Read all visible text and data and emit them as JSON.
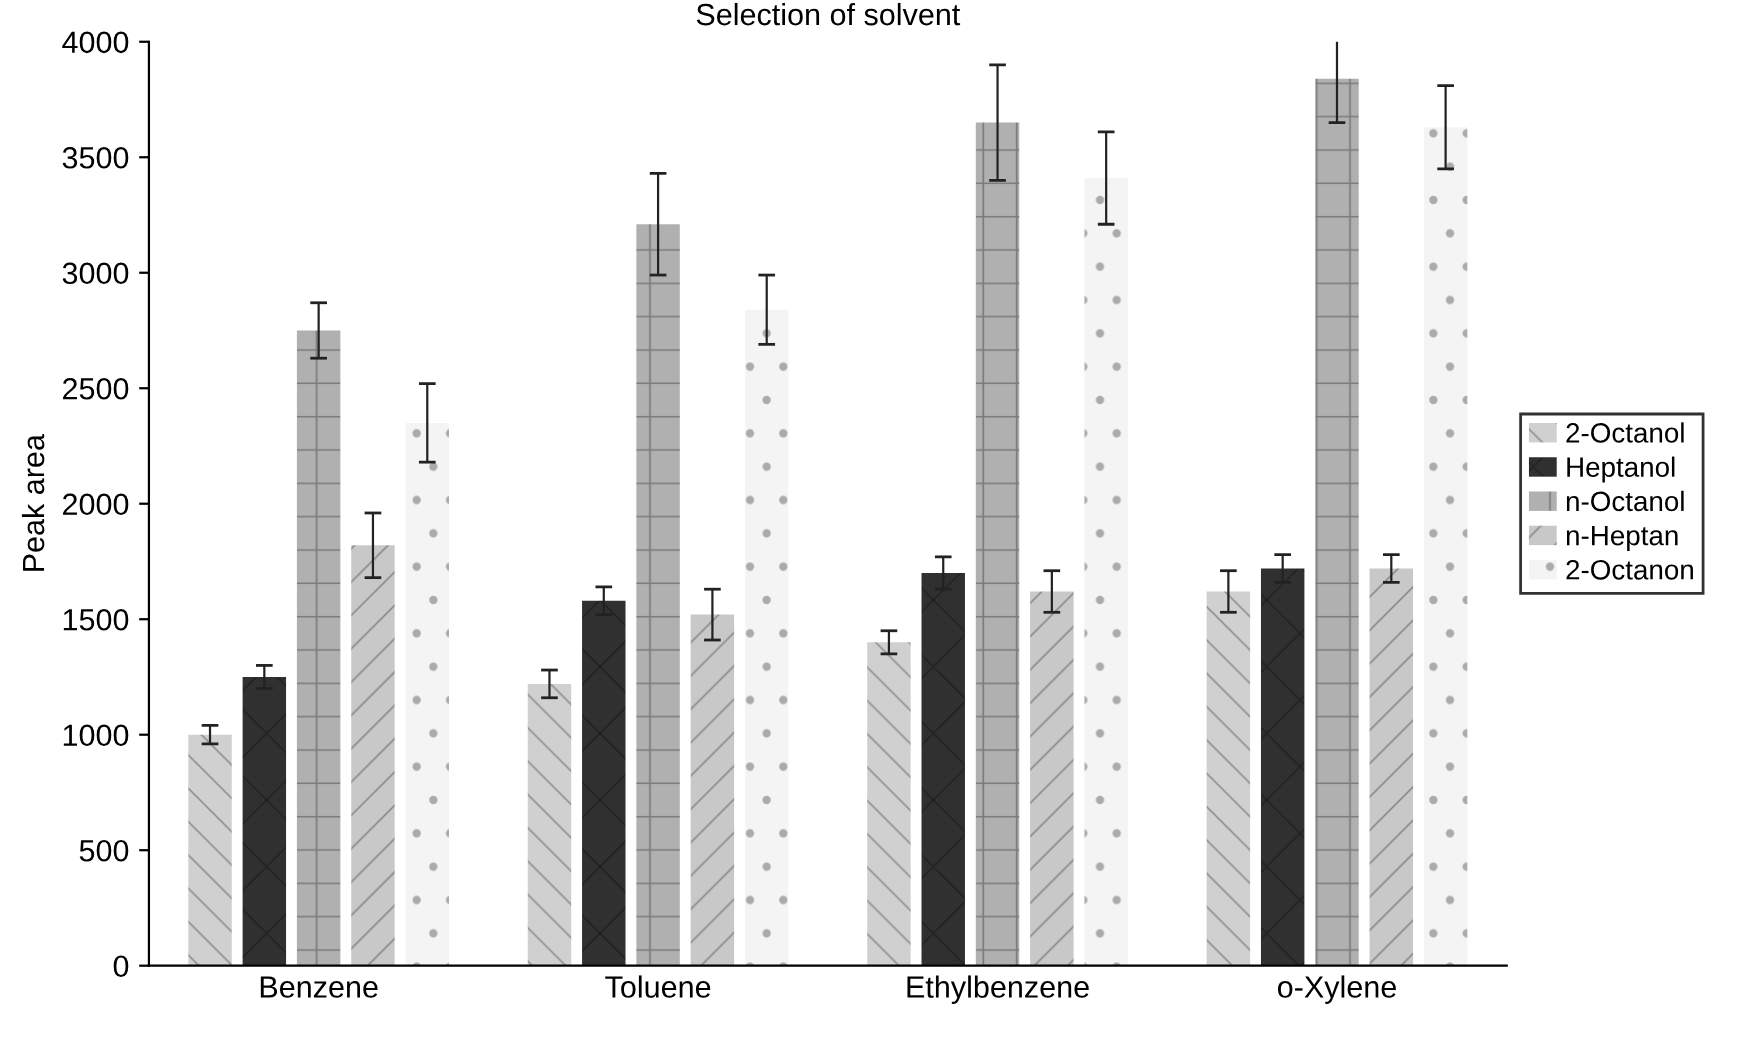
{
  "chart_data": {
    "type": "bar",
    "title": "Selection of solvent",
    "ylabel": "Peak area",
    "categories": [
      "Benzene",
      "Toluene",
      "Ethylbenzene",
      "o-Xylene"
    ],
    "series": [
      {
        "name": "2-Octanol",
        "color": "#d0d0d0",
        "values": [
          1000,
          1220,
          1400,
          1620
        ],
        "errors": [
          40,
          60,
          50,
          90
        ]
      },
      {
        "name": "Heptanol",
        "color": "#303030",
        "values": [
          1250,
          1580,
          1700,
          1720
        ],
        "errors": [
          50,
          60,
          70,
          60
        ]
      },
      {
        "name": "n-Octanol",
        "color": "#b0b0b0",
        "values": [
          2750,
          3210,
          3650,
          3840
        ],
        "errors": [
          120,
          220,
          250,
          190
        ]
      },
      {
        "name": "n-Heptan",
        "color": "#c8c8c8",
        "values": [
          1820,
          1520,
          1620,
          1720
        ],
        "errors": [
          140,
          110,
          90,
          60
        ]
      },
      {
        "name": "2-Octanon",
        "color": "#f4f4f4",
        "values": [
          2350,
          2840,
          3410,
          3630
        ],
        "errors": [
          170,
          150,
          200,
          180
        ]
      }
    ],
    "ylim": [
      0,
      4000
    ],
    "yticks": [
      0,
      500,
      1000,
      1500,
      2000,
      2500,
      3000,
      3500,
      4000
    ],
    "grid": false,
    "legend": "right"
  }
}
